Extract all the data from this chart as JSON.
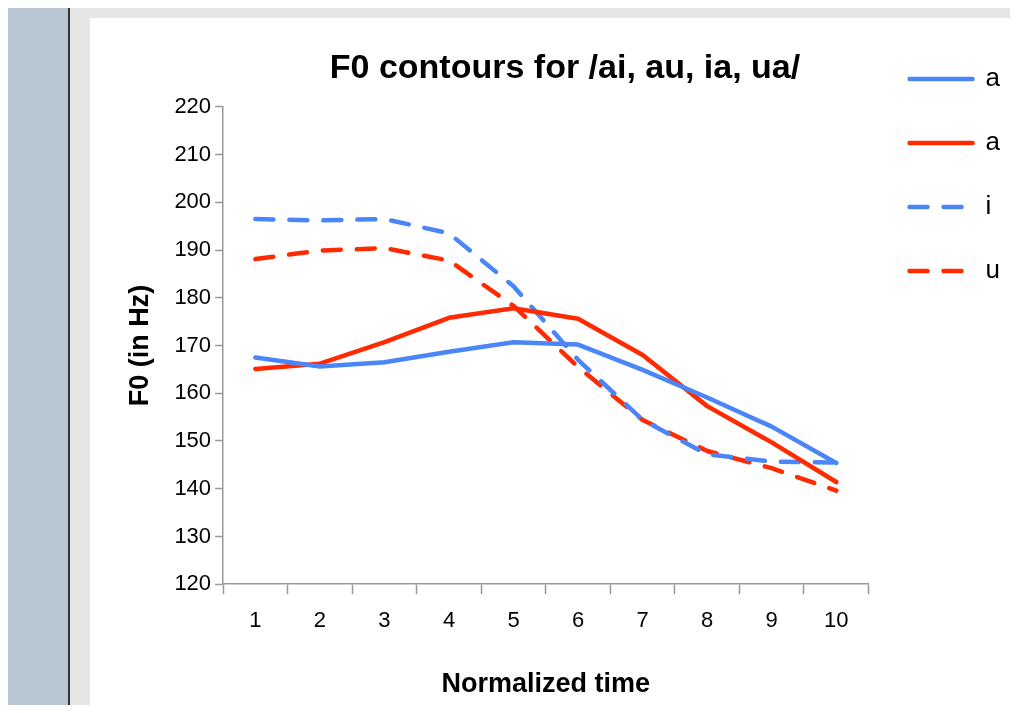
{
  "chart_data": {
    "type": "line",
    "title": "F0 contours for /ai, au, ia, ua/",
    "xlabel": "Normalized time",
    "ylabel": "F0 (in Hz)",
    "categories": [
      "1",
      "2",
      "3",
      "4",
      "5",
      "6",
      "7",
      "8",
      "9",
      "10"
    ],
    "series": [
      {
        "name": "a",
        "color": "#4a86f8",
        "line_style": "solid",
        "values": [
          167.5,
          165.6,
          166.5,
          168.7,
          170.7,
          170.2,
          164.9,
          159.1,
          153,
          145.4
        ]
      },
      {
        "name": "a",
        "color": "#ff2a00",
        "line_style": "solid",
        "values": [
          165.1,
          166.2,
          170.7,
          175.8,
          177.8,
          175.6,
          168,
          157.3,
          149.7,
          141.4
        ]
      },
      {
        "name": "i",
        "color": "#4a86f8",
        "line_style": "dashed",
        "values": [
          196.5,
          196.2,
          196.5,
          193.5,
          182.4,
          167,
          154.4,
          147.2,
          145.7,
          145.5
        ]
      },
      {
        "name": "u",
        "color": "#ff2a00",
        "line_style": "dashed",
        "values": [
          188.1,
          189.9,
          190.4,
          187.8,
          178.3,
          165.5,
          154.4,
          147.9,
          144.3,
          139.6
        ]
      }
    ],
    "ylim": [
      120,
      220
    ],
    "yticks": [
      120,
      130,
      140,
      150,
      160,
      170,
      180,
      190,
      200,
      210,
      220
    ],
    "grid": false,
    "legend": "right",
    "marker": "none"
  }
}
